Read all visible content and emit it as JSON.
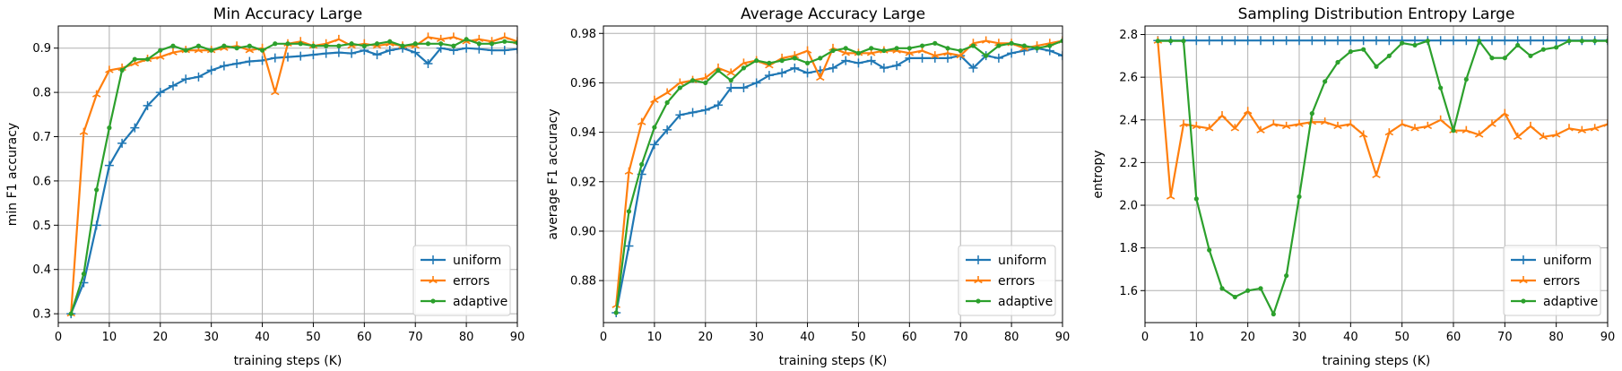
{
  "chart_data": [
    {
      "type": "line",
      "title": "Min Accuracy Large",
      "xlabel": "training steps (K)",
      "ylabel": "min F1 accuracy",
      "xlim": [
        0,
        90
      ],
      "ylim": [
        0.28,
        0.95
      ],
      "xticks": [
        0,
        10,
        20,
        30,
        40,
        50,
        60,
        70,
        80,
        90
      ],
      "yticks": [
        0.3,
        0.4,
        0.5,
        0.6,
        0.7,
        0.8,
        0.9
      ],
      "grid": true,
      "legend": "bottom-right",
      "x": [
        2.5,
        5,
        7.5,
        10,
        12.5,
        15,
        17.5,
        20,
        22.5,
        25,
        27.5,
        30,
        32.5,
        35,
        37.5,
        40,
        42.5,
        45,
        47.5,
        50,
        52.5,
        55,
        57.5,
        60,
        62.5,
        65,
        67.5,
        70,
        72.5,
        75,
        77.5,
        80,
        82.5,
        85,
        87.5,
        90
      ],
      "series": [
        {
          "name": "uniform",
          "color": "#1f77b4",
          "marker": "plus",
          "values": [
            0.3,
            0.37,
            0.5,
            0.635,
            0.685,
            0.72,
            0.77,
            0.8,
            0.815,
            0.83,
            0.835,
            0.85,
            0.86,
            0.865,
            0.87,
            0.872,
            0.878,
            0.88,
            0.882,
            0.885,
            0.888,
            0.89,
            0.888,
            0.895,
            0.885,
            0.895,
            0.9,
            0.89,
            0.865,
            0.9,
            0.895,
            0.9,
            0.898,
            0.895,
            0.895,
            0.898
          ]
        },
        {
          "name": "errors",
          "color": "#ff7f0e",
          "marker": "star",
          "values": [
            0.3,
            0.71,
            0.795,
            0.85,
            0.855,
            0.865,
            0.875,
            0.88,
            0.89,
            0.895,
            0.895,
            0.895,
            0.9,
            0.905,
            0.895,
            0.9,
            0.8,
            0.91,
            0.915,
            0.905,
            0.91,
            0.92,
            0.905,
            0.91,
            0.905,
            0.91,
            0.905,
            0.905,
            0.925,
            0.92,
            0.925,
            0.915,
            0.92,
            0.915,
            0.925,
            0.915
          ]
        },
        {
          "name": "adaptive",
          "color": "#2ca02c",
          "marker": "dot",
          "values": [
            0.3,
            0.39,
            0.58,
            0.72,
            0.85,
            0.875,
            0.875,
            0.895,
            0.905,
            0.895,
            0.905,
            0.895,
            0.905,
            0.9,
            0.905,
            0.895,
            0.91,
            0.91,
            0.91,
            0.905,
            0.905,
            0.905,
            0.91,
            0.905,
            0.91,
            0.915,
            0.905,
            0.91,
            0.91,
            0.91,
            0.905,
            0.92,
            0.91,
            0.91,
            0.915,
            0.912
          ]
        }
      ]
    },
    {
      "type": "line",
      "title": "Average Accuracy Large",
      "xlabel": "training steps (K)",
      "ylabel": "average F1 accuracy",
      "xlim": [
        0,
        90
      ],
      "ylim": [
        0.863,
        0.983
      ],
      "xticks": [
        0,
        10,
        20,
        30,
        40,
        50,
        60,
        70,
        80,
        90
      ],
      "yticks": [
        0.88,
        0.9,
        0.92,
        0.94,
        0.96,
        0.98
      ],
      "grid": true,
      "legend": "bottom-right",
      "x": [
        2.5,
        5,
        7.5,
        10,
        12.5,
        15,
        17.5,
        20,
        22.5,
        25,
        27.5,
        30,
        32.5,
        35,
        37.5,
        40,
        42.5,
        45,
        47.5,
        50,
        52.5,
        55,
        57.5,
        60,
        62.5,
        65,
        67.5,
        70,
        72.5,
        75,
        77.5,
        80,
        82.5,
        85,
        87.5,
        90
      ],
      "series": [
        {
          "name": "uniform",
          "color": "#1f77b4",
          "marker": "plus",
          "values": [
            0.867,
            0.894,
            0.923,
            0.935,
            0.941,
            0.947,
            0.948,
            0.949,
            0.951,
            0.958,
            0.958,
            0.96,
            0.963,
            0.964,
            0.966,
            0.964,
            0.965,
            0.966,
            0.969,
            0.968,
            0.969,
            0.966,
            0.967,
            0.97,
            0.97,
            0.97,
            0.97,
            0.971,
            0.966,
            0.971,
            0.97,
            0.972,
            0.973,
            0.974,
            0.973,
            0.971
          ]
        },
        {
          "name": "errors",
          "color": "#ff7f0e",
          "marker": "star",
          "values": [
            0.87,
            0.924,
            0.944,
            0.953,
            0.956,
            0.96,
            0.961,
            0.962,
            0.966,
            0.964,
            0.968,
            0.969,
            0.967,
            0.97,
            0.971,
            0.973,
            0.962,
            0.974,
            0.972,
            0.972,
            0.972,
            0.973,
            0.973,
            0.972,
            0.973,
            0.971,
            0.972,
            0.971,
            0.976,
            0.977,
            0.976,
            0.976,
            0.974,
            0.975,
            0.976,
            0.977
          ]
        },
        {
          "name": "adaptive",
          "color": "#2ca02c",
          "marker": "dot",
          "values": [
            0.867,
            0.908,
            0.927,
            0.942,
            0.952,
            0.958,
            0.961,
            0.96,
            0.965,
            0.961,
            0.966,
            0.969,
            0.968,
            0.969,
            0.97,
            0.968,
            0.97,
            0.973,
            0.974,
            0.972,
            0.974,
            0.973,
            0.974,
            0.974,
            0.975,
            0.976,
            0.974,
            0.973,
            0.975,
            0.971,
            0.975,
            0.976,
            0.975,
            0.974,
            0.975,
            0.977
          ]
        }
      ]
    },
    {
      "type": "line",
      "title": "Sampling Distribution Entropy Large",
      "xlabel": "training steps (K)",
      "ylabel": "entropy",
      "xlim": [
        0,
        90
      ],
      "ylim": [
        1.45,
        2.84
      ],
      "xticks": [
        0,
        10,
        20,
        30,
        40,
        50,
        60,
        70,
        80,
        90
      ],
      "yticks": [
        1.6,
        1.8,
        2.0,
        2.2,
        2.4,
        2.6,
        2.8
      ],
      "grid": true,
      "legend": "bottom-right",
      "x": [
        2.5,
        5,
        7.5,
        10,
        12.5,
        15,
        17.5,
        20,
        22.5,
        25,
        27.5,
        30,
        32.5,
        35,
        37.5,
        40,
        42.5,
        45,
        47.5,
        50,
        52.5,
        55,
        57.5,
        60,
        62.5,
        65,
        67.5,
        70,
        72.5,
        75,
        77.5,
        80,
        82.5,
        85,
        87.5,
        90
      ],
      "series": [
        {
          "name": "uniform",
          "color": "#1f77b4",
          "marker": "plus",
          "values": [
            2.772,
            2.772,
            2.772,
            2.772,
            2.772,
            2.772,
            2.772,
            2.772,
            2.772,
            2.772,
            2.772,
            2.772,
            2.772,
            2.772,
            2.772,
            2.772,
            2.772,
            2.772,
            2.772,
            2.772,
            2.772,
            2.772,
            2.772,
            2.772,
            2.772,
            2.772,
            2.772,
            2.772,
            2.772,
            2.772,
            2.772,
            2.772,
            2.772,
            2.772,
            2.772,
            2.772
          ]
        },
        {
          "name": "errors",
          "color": "#ff7f0e",
          "marker": "star",
          "values": [
            2.77,
            2.04,
            2.38,
            2.37,
            2.36,
            2.42,
            2.36,
            2.44,
            2.35,
            2.38,
            2.37,
            2.38,
            2.39,
            2.39,
            2.37,
            2.38,
            2.33,
            2.14,
            2.34,
            2.38,
            2.36,
            2.37,
            2.4,
            2.35,
            2.35,
            2.33,
            2.38,
            2.43,
            2.32,
            2.37,
            2.32,
            2.33,
            2.36,
            2.35,
            2.36,
            2.38
          ]
        },
        {
          "name": "adaptive",
          "color": "#2ca02c",
          "marker": "dot",
          "values": [
            2.77,
            2.77,
            2.77,
            2.03,
            1.79,
            1.61,
            1.57,
            1.6,
            1.61,
            1.49,
            1.67,
            2.04,
            2.43,
            2.58,
            2.67,
            2.72,
            2.73,
            2.65,
            2.7,
            2.76,
            2.75,
            2.77,
            2.55,
            2.35,
            2.59,
            2.77,
            2.69,
            2.69,
            2.75,
            2.7,
            2.73,
            2.74,
            2.77,
            2.77,
            2.77,
            2.77
          ]
        }
      ]
    }
  ]
}
